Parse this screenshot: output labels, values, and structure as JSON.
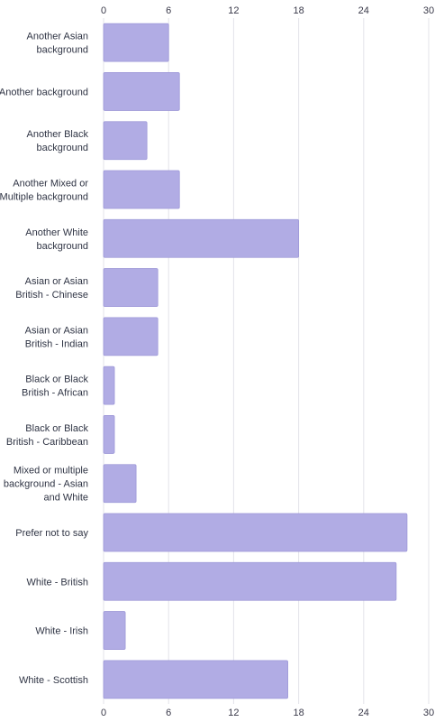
{
  "chart_data": {
    "type": "bar",
    "orientation": "horizontal",
    "title": "",
    "xlabel": "",
    "ylabel": "",
    "xlim": [
      0,
      30
    ],
    "ticks": [
      0,
      6,
      12,
      18,
      24,
      30
    ],
    "tick_labels": [
      "0",
      "6",
      "12",
      "18",
      "24",
      "30"
    ],
    "grid": true,
    "bar_color": "#b1ace4",
    "categories": [
      "Another Asian background",
      "Another background",
      "Another Black background",
      "Another Mixed or Multiple background",
      "Another White background",
      "Asian or Asian British - Chinese",
      "Asian or Asian British - Indian",
      "Black or Black British - African",
      "Black or Black British - Caribbean",
      "Mixed or multiple background - Asian and White",
      "Prefer not to say",
      "White - British",
      "White - Irish",
      "White - Scottish"
    ],
    "values": [
      6,
      7,
      4,
      7,
      18,
      5,
      5,
      1,
      1,
      3,
      28,
      27,
      2,
      17
    ]
  }
}
